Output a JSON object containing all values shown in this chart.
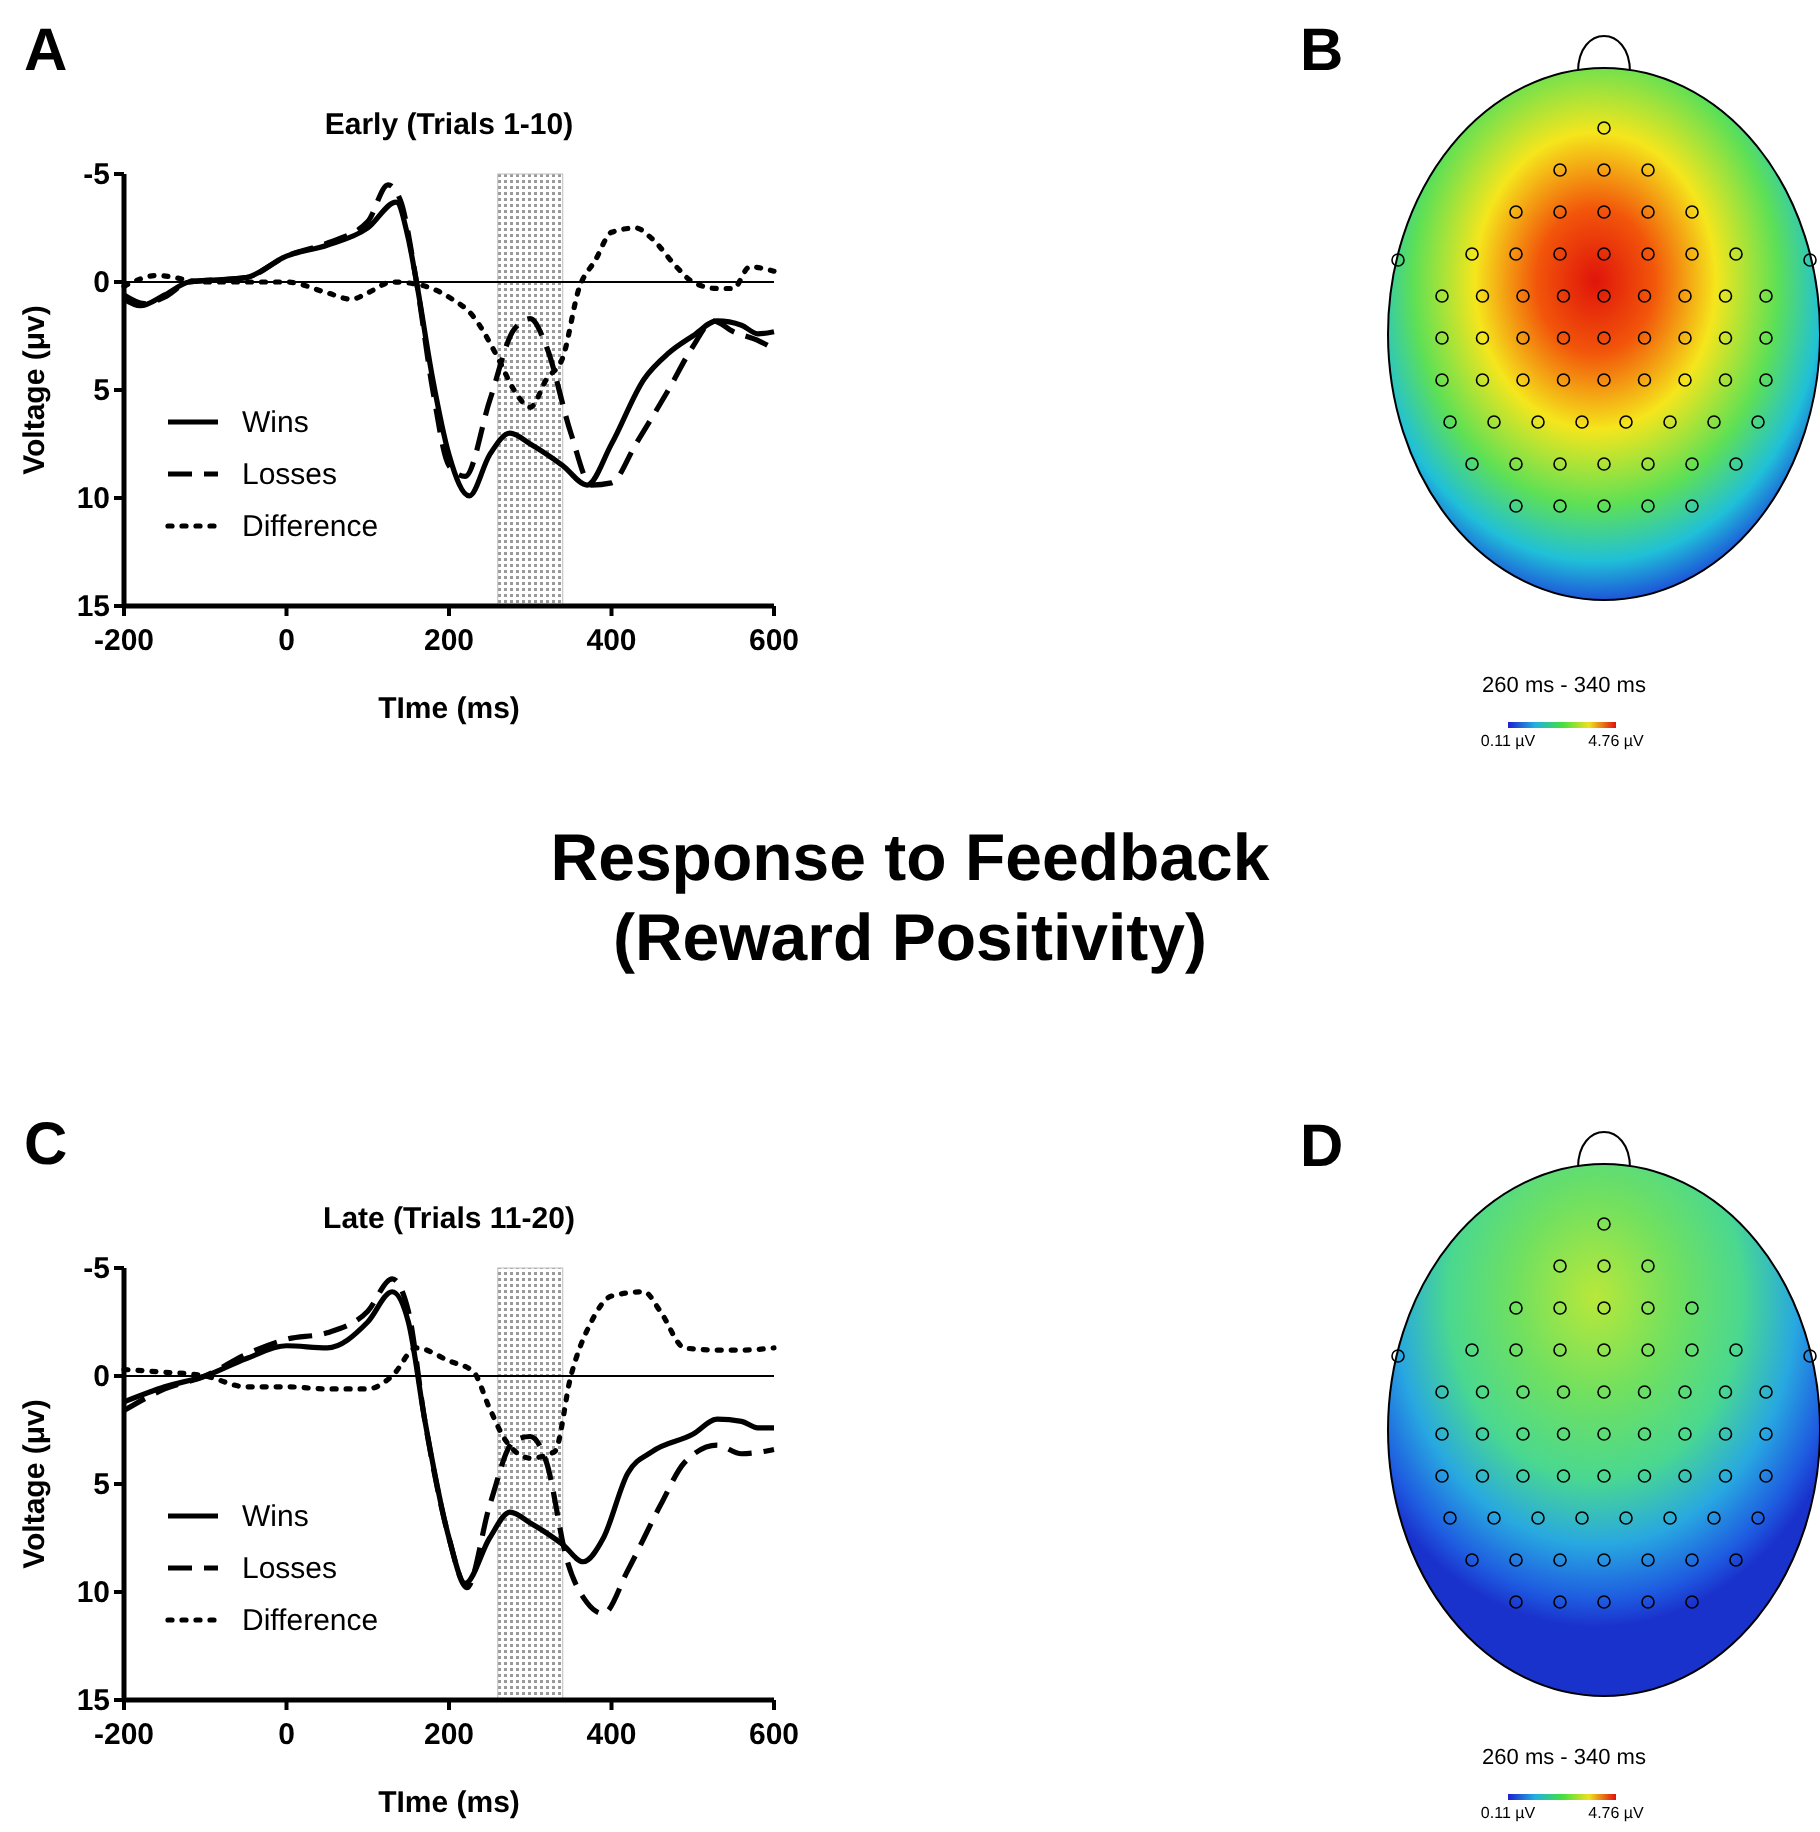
{
  "chart_data": [
    {
      "type": "line",
      "title": "Early (Trials 1-10)",
      "xlabel": "TIme (ms)",
      "ylabel": "Voltage (μv)",
      "annotations": [
        "A"
      ],
      "xlim": [
        -200,
        600
      ],
      "xticks": [
        -200,
        0,
        200,
        400,
        600
      ],
      "ylim": [
        15,
        -5
      ],
      "yticks": [
        -5,
        0,
        5,
        10,
        15
      ],
      "grid": false,
      "legend": "bottom left",
      "bands": [
        {
          "axis": "x",
          "from": 260,
          "to": 340,
          "color": "#bdbdbd"
        }
      ],
      "ref_lines": [
        {
          "axis": "y",
          "value": 0,
          "color": "#000000"
        }
      ],
      "series": [
        {
          "name": "Wins",
          "color": "#000000",
          "line_style": "solid",
          "x": [
            -200,
            -180,
            -150,
            -120,
            -50,
            0,
            50,
            100,
            135,
            150,
            160,
            180,
            200,
            225,
            250,
            275,
            300,
            340,
            370,
            400,
            440,
            470,
            500,
            530,
            560,
            580,
            600
          ],
          "values": [
            0.8,
            1.1,
            0.6,
            0,
            -0.2,
            -1.2,
            -1.7,
            -2.5,
            -3.7,
            -2,
            0,
            4.5,
            8,
            9.9,
            8,
            7,
            7.5,
            8.5,
            9.4,
            7.5,
            4.5,
            3.3,
            2.5,
            1.8,
            2,
            2.4,
            2.3
          ]
        },
        {
          "name": "Losses",
          "color": "#000000",
          "line_style": "dashed",
          "x": [
            -200,
            -175,
            -150,
            -120,
            -50,
            0,
            50,
            100,
            125,
            140,
            160,
            180,
            200,
            220,
            250,
            280,
            300,
            320,
            350,
            375,
            400,
            430,
            470,
            500,
            525,
            550,
            580,
            600
          ],
          "values": [
            0.6,
            1,
            0.7,
            0,
            -0.2,
            -1.2,
            -1.8,
            -2.8,
            -4.5,
            -3.8,
            0,
            5,
            8.5,
            9,
            5.5,
            2.2,
            1.7,
            3,
            7,
            9.4,
            9.3,
            7.5,
            5,
            3,
            1.8,
            2.3,
            2.7,
            3.1
          ]
        },
        {
          "name": "Difference",
          "color": "#000000",
          "line_style": "dotted",
          "x": [
            -200,
            -160,
            -100,
            -50,
            0,
            50,
            80,
            100,
            130,
            160,
            200,
            230,
            260,
            280,
            300,
            320,
            340,
            360,
            380,
            400,
            430,
            450,
            480,
            500,
            530,
            550,
            570,
            600
          ],
          "values": [
            0.2,
            -0.3,
            0,
            0,
            0,
            0.5,
            0.8,
            0.5,
            0,
            0.1,
            0.7,
            1.6,
            3.5,
            5,
            5.8,
            4.5,
            3.5,
            0.3,
            -1,
            -2.3,
            -2.5,
            -2,
            -0.7,
            0,
            0.3,
            0.3,
            -0.7,
            -0.5
          ]
        }
      ]
    },
    {
      "type": "other",
      "annotations": [
        "B",
        "260 ms - 340 ms",
        "0.11 µV",
        "4.76 µV"
      ]
    },
    {
      "type": "other",
      "title": "Response to Feedback",
      "subtitle": "(Reward Positivity)"
    },
    {
      "type": "line",
      "title": "Late (Trials 11-20)",
      "xlabel": "TIme (ms)",
      "ylabel": "Voltage (μv)",
      "annotations": [
        "C"
      ],
      "xlim": [
        -200,
        600
      ],
      "xticks": [
        -200,
        0,
        200,
        400,
        600
      ],
      "ylim": [
        15,
        -5
      ],
      "yticks": [
        -5,
        0,
        5,
        10,
        15
      ],
      "grid": false,
      "legend": "bottom left",
      "bands": [
        {
          "axis": "x",
          "from": 260,
          "to": 340,
          "color": "#bdbdbd"
        }
      ],
      "ref_lines": [
        {
          "axis": "y",
          "value": 0,
          "color": "#000000"
        }
      ],
      "series": [
        {
          "name": "Wins",
          "color": "#000000",
          "line_style": "solid",
          "x": [
            -200,
            -150,
            -100,
            -50,
            0,
            50,
            100,
            130,
            150,
            170,
            200,
            220,
            250,
            275,
            300,
            340,
            365,
            390,
            420,
            450,
            500,
            530,
            560,
            580,
            600
          ],
          "values": [
            1.2,
            0.5,
            0,
            -0.8,
            -1.4,
            -1.3,
            -2.5,
            -3.9,
            -2.5,
            2,
            7.5,
            9.6,
            7.5,
            6.3,
            6.8,
            7.8,
            8.6,
            7.5,
            4.5,
            3.5,
            2.7,
            2,
            2.1,
            2.4,
            2.4
          ]
        },
        {
          "name": "Losses",
          "color": "#000000",
          "line_style": "dashed",
          "x": [
            -200,
            -150,
            -100,
            -50,
            0,
            50,
            100,
            130,
            150,
            170,
            200,
            222,
            250,
            280,
            300,
            320,
            345,
            370,
            390,
            420,
            460,
            490,
            530,
            560,
            600
          ],
          "values": [
            1.6,
            0.6,
            0,
            -1,
            -1.7,
            -2,
            -3,
            -4.5,
            -3,
            2,
            7.5,
            9.8,
            6,
            3,
            2.8,
            4,
            8.5,
            10.5,
            11,
            9,
            6,
            4,
            3.2,
            3.6,
            3.4
          ]
        },
        {
          "name": "Difference",
          "color": "#000000",
          "line_style": "dotted",
          "x": [
            -200,
            -160,
            -100,
            -50,
            0,
            50,
            100,
            130,
            160,
            200,
            230,
            250,
            270,
            300,
            330,
            350,
            375,
            400,
            440,
            460,
            490,
            530,
            560,
            600
          ],
          "values": [
            -0.3,
            -0.2,
            0,
            0.5,
            0.5,
            0.6,
            0.6,
            0,
            -1.3,
            -0.7,
            -0.2,
            1.5,
            3,
            3.8,
            3.5,
            0,
            -2.5,
            -3.7,
            -3.9,
            -3,
            -1.3,
            -1.2,
            -1.2,
            -1.3
          ]
        }
      ]
    },
    {
      "type": "other",
      "annotations": [
        "D",
        "260 ms - 340 ms",
        "0.11 µV",
        "4.76 µV"
      ]
    }
  ]
}
